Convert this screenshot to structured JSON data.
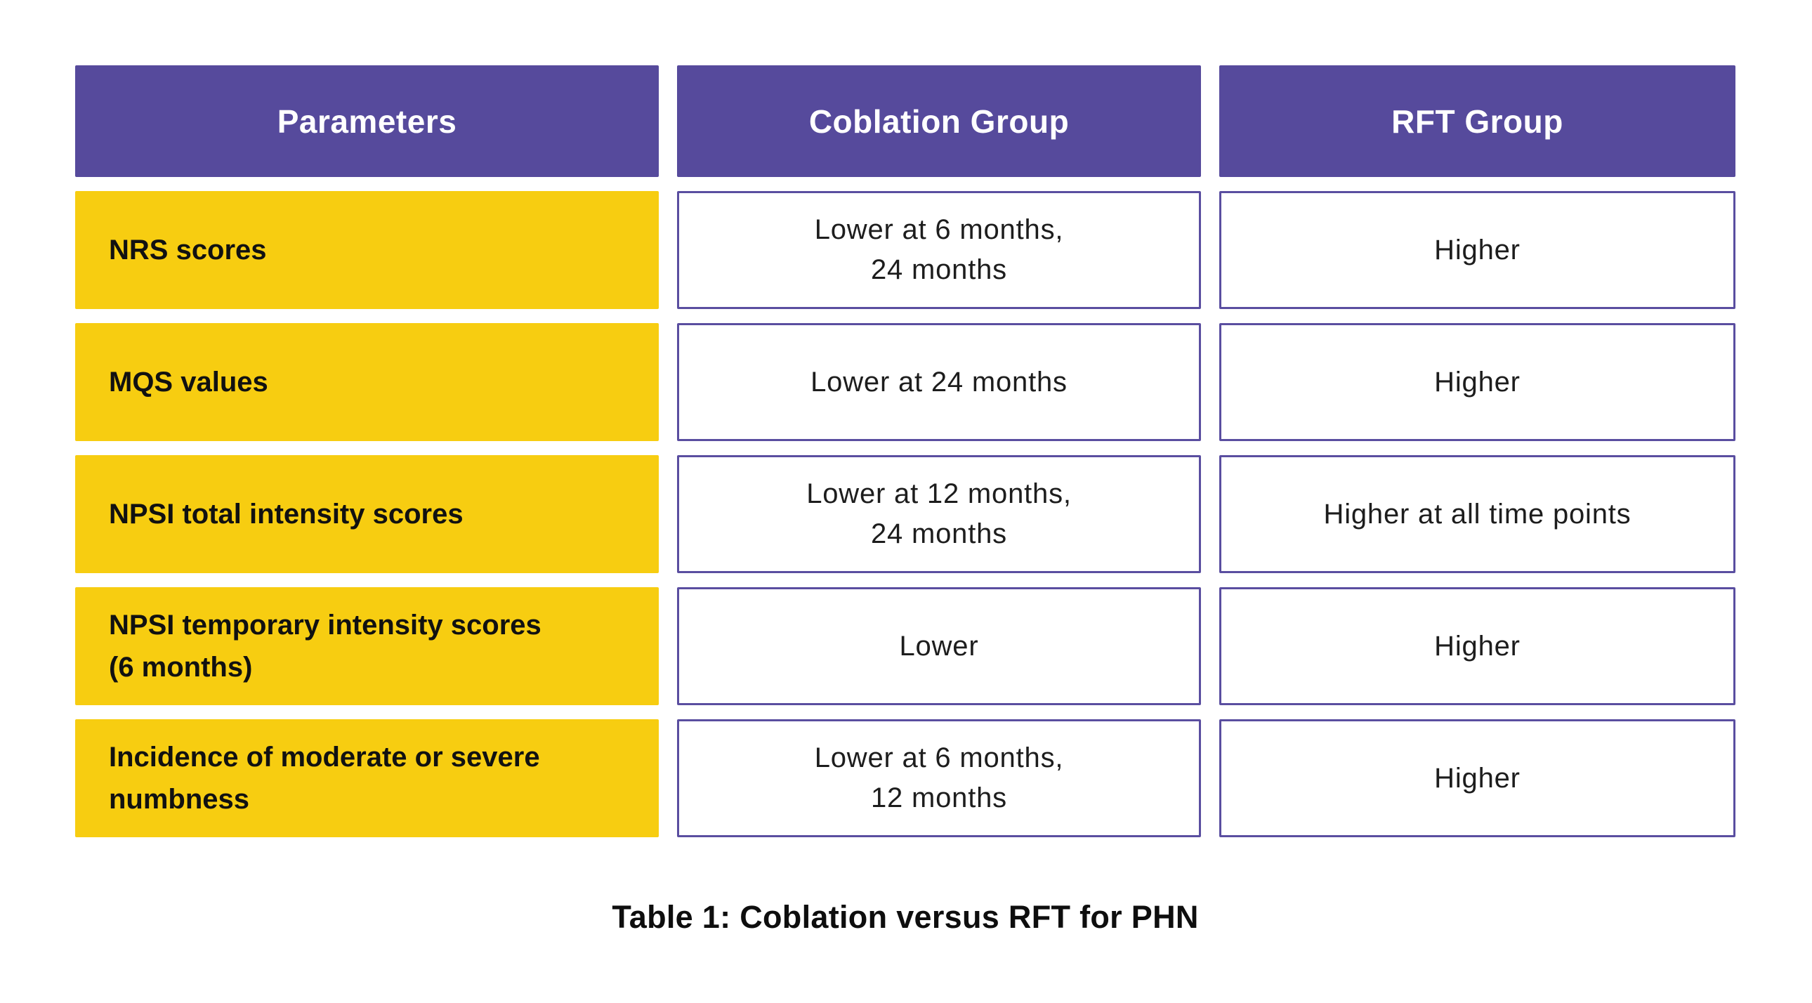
{
  "table": {
    "columns": [
      "Parameters",
      "Coblation Group",
      "RFT Group"
    ],
    "rows": [
      {
        "parameter": "NRS scores",
        "coblation": "Lower at 6 months,\n24 months",
        "rft": "Higher"
      },
      {
        "parameter": "MQS values",
        "coblation": "Lower at 24 months",
        "rft": "Higher"
      },
      {
        "parameter": "NPSI total intensity scores",
        "coblation": "Lower at 12 months,\n24 months",
        "rft": "Higher at all time points"
      },
      {
        "parameter": "NPSI temporary intensity scores\n(6 months)",
        "coblation": "Lower",
        "rft": "Higher"
      },
      {
        "parameter": "Incidence of moderate or severe\nnumbness",
        "coblation": "Lower at 6 months,\n12 months",
        "rft": "Higher"
      }
    ],
    "caption": "Table 1: Coblation versus RFT for PHN"
  },
  "colors": {
    "header_bg": "#564A9C",
    "header_text": "#FFFFFF",
    "parameter_bg": "#F7CD11",
    "parameter_text": "#111111",
    "value_cell_border": "#5A4EA0",
    "value_cell_bg": "#FFFFFF",
    "value_text": "#1D1D1D",
    "caption_text": "#0E0E0E"
  }
}
